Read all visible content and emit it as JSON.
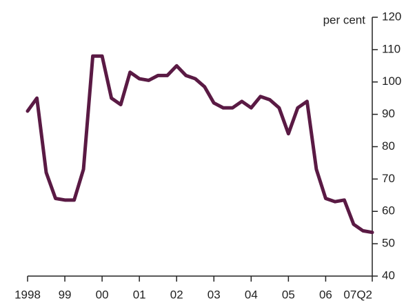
{
  "chart_data": {
    "type": "line",
    "y_label": "per cent",
    "categories": [
      "1998",
      null,
      null,
      null,
      "99",
      null,
      null,
      null,
      "00",
      null,
      null,
      null,
      "01",
      null,
      null,
      null,
      "02",
      null,
      null,
      null,
      "03",
      null,
      null,
      null,
      "04",
      null,
      null,
      null,
      "05",
      null,
      null,
      null,
      "06",
      null,
      null,
      null,
      null,
      "07Q2"
    ],
    "series": [
      {
        "name": "per cent",
        "color": "#5a1a44",
        "values": [
          91,
          95,
          72,
          64,
          63.5,
          63.5,
          73,
          108,
          108,
          95,
          93,
          103,
          101,
          100.5,
          102,
          102,
          105,
          102,
          101,
          98.5,
          93.5,
          92,
          92,
          94,
          92,
          95.5,
          94.5,
          92,
          84,
          92,
          94,
          73,
          64,
          63,
          63.5,
          56,
          54,
          53.5
        ]
      }
    ],
    "ylim": [
      40,
      120
    ],
    "yticks": [
      40,
      50,
      60,
      70,
      80,
      90,
      100,
      110,
      120
    ],
    "y_axis_side": "right",
    "grid": false
  }
}
